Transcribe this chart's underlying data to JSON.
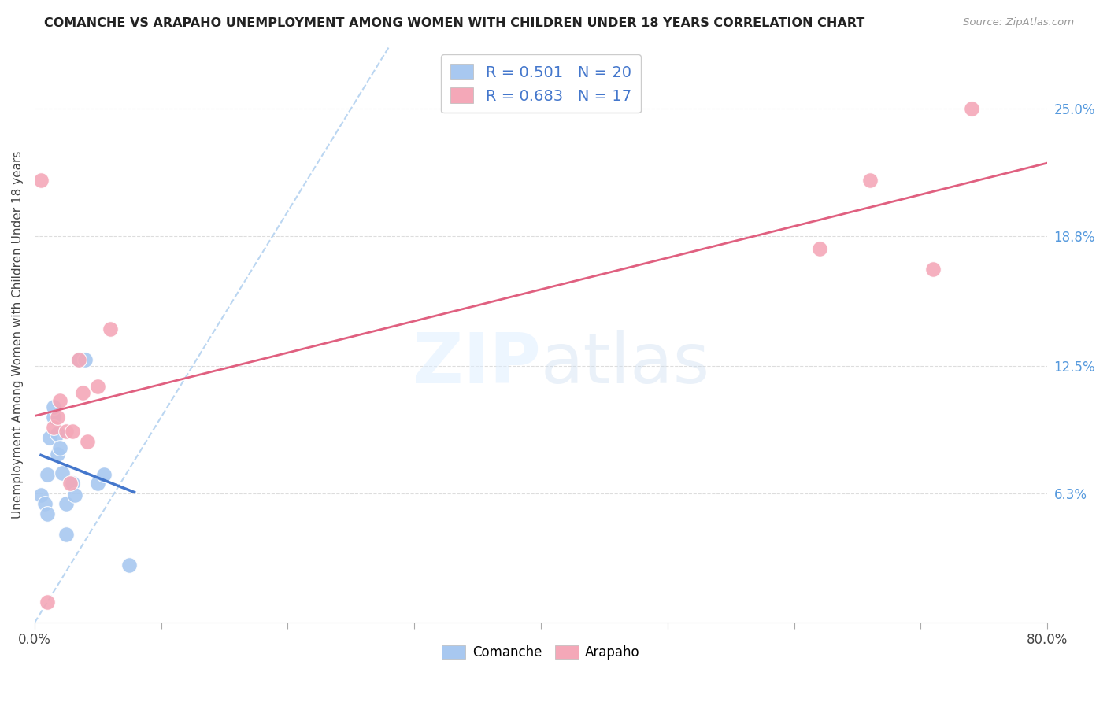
{
  "title": "COMANCHE VS ARAPAHO UNEMPLOYMENT AMONG WOMEN WITH CHILDREN UNDER 18 YEARS CORRELATION CHART",
  "source": "Source: ZipAtlas.com",
  "ylabel": "Unemployment Among Women with Children Under 18 years",
  "xlim": [
    0.0,
    0.8
  ],
  "ylim": [
    0.0,
    0.28
  ],
  "xticks": [
    0.0,
    0.1,
    0.2,
    0.3,
    0.4,
    0.5,
    0.6,
    0.7,
    0.8
  ],
  "xticklabels": [
    "0.0%",
    "",
    "",
    "",
    "",
    "",
    "",
    "",
    "80.0%"
  ],
  "ytick_labels_right": [
    "25.0%",
    "18.8%",
    "12.5%",
    "6.3%"
  ],
  "ytick_values_right": [
    0.25,
    0.188,
    0.125,
    0.063
  ],
  "comanche_color": "#A8C8F0",
  "arapaho_color": "#F4A8B8",
  "comanche_line_color": "#4477CC",
  "arapaho_line_color": "#E06080",
  "diagonal_color": "#AACCEE",
  "R_comanche": 0.501,
  "N_comanche": 20,
  "R_arapaho": 0.683,
  "N_arapaho": 17,
  "comanche_x": [
    0.005,
    0.008,
    0.01,
    0.01,
    0.012,
    0.015,
    0.015,
    0.018,
    0.018,
    0.02,
    0.022,
    0.025,
    0.025,
    0.03,
    0.032,
    0.035,
    0.04,
    0.05,
    0.055,
    0.075
  ],
  "comanche_y": [
    0.062,
    0.058,
    0.053,
    0.072,
    0.09,
    0.1,
    0.105,
    0.092,
    0.082,
    0.085,
    0.073,
    0.058,
    0.043,
    0.068,
    0.062,
    0.128,
    0.128,
    0.068,
    0.072,
    0.028
  ],
  "arapaho_x": [
    0.005,
    0.01,
    0.015,
    0.018,
    0.02,
    0.025,
    0.028,
    0.03,
    0.035,
    0.038,
    0.042,
    0.05,
    0.06,
    0.62,
    0.66,
    0.71,
    0.74
  ],
  "arapaho_y": [
    0.215,
    0.01,
    0.095,
    0.1,
    0.108,
    0.093,
    0.068,
    0.093,
    0.128,
    0.112,
    0.088,
    0.115,
    0.143,
    0.182,
    0.215,
    0.172,
    0.25
  ],
  "watermark_part1": "ZIP",
  "watermark_part2": "atlas",
  "background_color": "#FFFFFF",
  "grid_color": "#DDDDDD",
  "legend_R_color": "#4477CC",
  "legend_N_label_color": "#333333",
  "legend_N_value_color": "#22AACC",
  "ytick_color": "#5599DD"
}
